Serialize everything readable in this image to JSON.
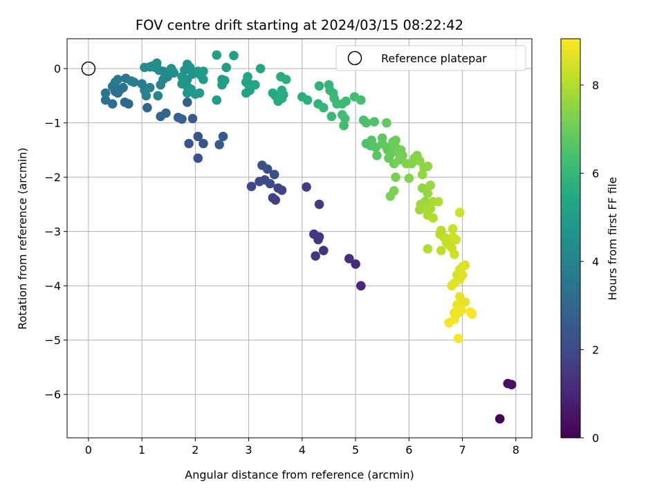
{
  "chart_data": {
    "type": "scatter",
    "title": "FOV centre drift starting at 2024/03/15 08:22:42",
    "xlabel": "Angular distance from reference (arcmin)",
    "ylabel": "Rotation from reference (arcmin)",
    "xlim": [
      -0.4,
      8.3
    ],
    "ylim": [
      -6.8,
      0.55
    ],
    "xticks": [
      "0",
      "1",
      "2",
      "3",
      "4",
      "5",
      "6",
      "7",
      "8"
    ],
    "yticks": [
      "0",
      "−1",
      "−2",
      "−3",
      "−4",
      "−5",
      "−6"
    ],
    "grid": true,
    "colormap": "viridis",
    "colorbar": {
      "label": "Hours from first FF file",
      "range": [
        0,
        9.05
      ],
      "ticks": [
        "0",
        "2",
        "4",
        "6",
        "8"
      ]
    },
    "legend": {
      "placement": "top-right",
      "entries": [
        {
          "label": "Reference platepar",
          "marker": "open-circle",
          "color": "#000000"
        }
      ]
    },
    "reference_point": {
      "x": 0,
      "y": 0
    },
    "points": [
      [
        7.7,
        -6.45,
        0.1
      ],
      [
        7.85,
        -5.8,
        0.3
      ],
      [
        7.92,
        -5.82,
        0.4
      ],
      [
        5.1,
        -4.0,
        1.0
      ],
      [
        5.0,
        -3.6,
        1.1
      ],
      [
        4.88,
        -3.5,
        1.2
      ],
      [
        4.4,
        -3.35,
        1.3
      ],
      [
        4.25,
        -3.45,
        1.35
      ],
      [
        4.3,
        -3.15,
        1.4
      ],
      [
        4.32,
        -3.1,
        1.45
      ],
      [
        4.22,
        -3.05,
        1.5
      ],
      [
        4.32,
        -2.5,
        1.55
      ],
      [
        4.08,
        -2.18,
        1.6
      ],
      [
        3.5,
        -2.42,
        1.7
      ],
      [
        3.45,
        -2.38,
        1.75
      ],
      [
        3.62,
        -2.24,
        1.8
      ],
      [
        3.55,
        -2.2,
        1.85
      ],
      [
        3.05,
        -2.17,
        1.9
      ],
      [
        3.2,
        -2.08,
        1.95
      ],
      [
        3.3,
        -2.05,
        2.0
      ],
      [
        3.4,
        -2.12,
        2.05
      ],
      [
        3.48,
        -1.95,
        2.1
      ],
      [
        3.35,
        -1.85,
        2.15
      ],
      [
        3.25,
        -1.78,
        2.2
      ],
      [
        2.05,
        -1.65,
        2.3
      ],
      [
        2.15,
        -1.38,
        2.35
      ],
      [
        2.05,
        -1.25,
        2.4
      ],
      [
        1.88,
        -1.38,
        2.45
      ],
      [
        2.45,
        -1.4,
        2.5
      ],
      [
        2.52,
        -1.25,
        2.55
      ],
      [
        1.95,
        -0.92,
        2.6
      ],
      [
        1.75,
        -0.93,
        2.7
      ],
      [
        1.68,
        -0.9,
        2.75
      ],
      [
        1.85,
        -0.62,
        2.8
      ],
      [
        1.45,
        -0.82,
        2.9
      ],
      [
        1.35,
        -0.88,
        2.95
      ],
      [
        1.1,
        -0.72,
        3.0
      ],
      [
        0.75,
        -0.65,
        3.1
      ],
      [
        0.68,
        -0.62,
        3.15
      ],
      [
        0.45,
        -0.65,
        3.2
      ],
      [
        0.32,
        -0.58,
        3.25
      ],
      [
        0.55,
        -0.45,
        3.3
      ],
      [
        0.5,
        -0.42,
        3.35
      ],
      [
        0.6,
        -0.38,
        3.4
      ],
      [
        0.65,
        -0.35,
        3.45
      ],
      [
        0.32,
        -0.45,
        3.5
      ],
      [
        0.45,
        -0.33,
        3.55
      ],
      [
        0.5,
        -0.25,
        3.6
      ],
      [
        0.55,
        -0.2,
        3.65
      ],
      [
        0.7,
        -0.18,
        3.7
      ],
      [
        0.8,
        -0.23,
        3.75
      ],
      [
        0.85,
        -0.25,
        3.8
      ],
      [
        1.0,
        -0.28,
        3.85
      ],
      [
        1.05,
        -0.4,
        3.9
      ],
      [
        1.08,
        -0.5,
        3.95
      ],
      [
        1.15,
        -0.35,
        4.0
      ],
      [
        1.3,
        -0.5,
        4.05
      ],
      [
        1.35,
        -0.3,
        4.1
      ],
      [
        1.4,
        -0.2,
        4.15
      ],
      [
        1.48,
        -0.15,
        4.2
      ],
      [
        1.5,
        -0.08,
        4.25
      ],
      [
        1.4,
        -0.05,
        4.3
      ],
      [
        1.32,
        -0.03,
        4.3
      ],
      [
        1.25,
        0.02,
        4.35
      ],
      [
        1.15,
        0.03,
        4.35
      ],
      [
        1.05,
        0.02,
        4.4
      ],
      [
        1.28,
        0.1,
        4.4
      ],
      [
        1.2,
        0.05,
        4.45
      ],
      [
        1.55,
        0.0,
        4.45
      ],
      [
        1.6,
        -0.08,
        4.5
      ],
      [
        1.8,
        -0.03,
        4.55
      ],
      [
        1.9,
        0.02,
        4.55
      ],
      [
        1.85,
        0.08,
        4.6
      ],
      [
        1.95,
        -0.1,
        4.6
      ],
      [
        1.75,
        -0.15,
        4.65
      ],
      [
        1.85,
        -0.2,
        4.65
      ],
      [
        1.75,
        -0.28,
        4.7
      ],
      [
        1.85,
        -0.33,
        4.7
      ],
      [
        1.92,
        -0.38,
        4.75
      ],
      [
        1.85,
        -0.45,
        4.75
      ],
      [
        2.08,
        -0.45,
        4.8
      ],
      [
        2.0,
        -0.47,
        4.8
      ],
      [
        2.05,
        -0.05,
        4.85
      ],
      [
        2.1,
        -0.12,
        4.85
      ],
      [
        2.15,
        -0.05,
        4.9
      ],
      [
        2.15,
        -0.2,
        4.9
      ],
      [
        2.4,
        -0.58,
        4.95
      ],
      [
        2.5,
        -0.2,
        5.0
      ],
      [
        2.55,
        -0.22,
        5.0
      ],
      [
        2.5,
        -0.3,
        5.05
      ],
      [
        2.58,
        0.02,
        5.05
      ],
      [
        2.4,
        0.25,
        5.1
      ],
      [
        2.72,
        0.24,
        5.1
      ],
      [
        2.95,
        -0.45,
        5.2
      ],
      [
        3.02,
        -0.4,
        5.2
      ],
      [
        3.0,
        -0.3,
        5.25
      ],
      [
        2.95,
        -0.25,
        5.25
      ],
      [
        3.05,
        -0.3,
        5.3
      ],
      [
        2.98,
        -0.15,
        5.3
      ],
      [
        3.12,
        -0.3,
        5.35
      ],
      [
        3.22,
        0.0,
        5.35
      ],
      [
        3.45,
        -0.45,
        5.45
      ],
      [
        3.5,
        -0.5,
        5.45
      ],
      [
        3.55,
        -0.52,
        5.5
      ],
      [
        3.55,
        -0.6,
        5.5
      ],
      [
        3.62,
        -0.55,
        5.55
      ],
      [
        3.62,
        -0.4,
        5.55
      ],
      [
        3.65,
        -0.48,
        5.6
      ],
      [
        3.6,
        -0.15,
        5.6
      ],
      [
        3.7,
        -0.2,
        5.65
      ],
      [
        4.0,
        -0.52,
        5.7
      ],
      [
        4.1,
        -0.58,
        5.75
      ],
      [
        4.32,
        -0.32,
        5.8
      ],
      [
        4.3,
        -0.65,
        5.85
      ],
      [
        4.4,
        -0.72,
        5.9
      ],
      [
        4.5,
        -0.3,
        5.95
      ],
      [
        4.52,
        -0.4,
        6.0
      ],
      [
        4.58,
        -0.45,
        6.0
      ],
      [
        4.55,
        -0.88,
        6.05
      ],
      [
        4.6,
        -0.55,
        6.1
      ],
      [
        4.65,
        -0.65,
        6.1
      ],
      [
        4.75,
        -0.65,
        6.15
      ],
      [
        4.82,
        -0.6,
        6.15
      ],
      [
        4.75,
        -0.85,
        6.2
      ],
      [
        4.8,
        -0.92,
        6.25
      ],
      [
        4.78,
        -1.05,
        6.25
      ],
      [
        4.98,
        -0.52,
        6.3
      ],
      [
        5.1,
        -0.58,
        6.35
      ],
      [
        5.15,
        -0.95,
        6.4
      ],
      [
        5.2,
        -1.0,
        6.45
      ],
      [
        5.35,
        -0.98,
        6.5
      ],
      [
        5.2,
        -1.38,
        6.5
      ],
      [
        5.28,
        -1.42,
        6.55
      ],
      [
        5.3,
        -1.32,
        6.6
      ],
      [
        5.38,
        -1.45,
        6.65
      ],
      [
        5.4,
        -1.6,
        6.7
      ],
      [
        5.5,
        -1.38,
        6.75
      ],
      [
        5.5,
        -1.28,
        6.8
      ],
      [
        5.58,
        -1.45,
        6.8
      ],
      [
        5.58,
        -1.0,
        6.85
      ],
      [
        5.6,
        -1.5,
        6.85
      ],
      [
        5.62,
        -1.65,
        6.9
      ],
      [
        5.65,
        -1.58,
        6.9
      ],
      [
        5.7,
        -1.35,
        6.95
      ],
      [
        5.75,
        -1.32,
        7.0
      ],
      [
        5.75,
        -1.45,
        7.0
      ],
      [
        5.8,
        -1.55,
        7.05
      ],
      [
        5.85,
        -1.5,
        7.05
      ],
      [
        5.72,
        -1.75,
        7.1
      ],
      [
        5.82,
        -1.68,
        7.15
      ],
      [
        5.88,
        -1.6,
        7.15
      ],
      [
        5.75,
        -2.0,
        7.2
      ],
      [
        5.72,
        -2.25,
        7.25
      ],
      [
        5.65,
        -2.35,
        7.25
      ],
      [
        5.95,
        -1.75,
        7.3
      ],
      [
        6.0,
        -2.02,
        7.35
      ],
      [
        6.05,
        -1.75,
        7.35
      ],
      [
        6.1,
        -1.65,
        7.4
      ],
      [
        6.15,
        -1.6,
        7.4
      ],
      [
        6.2,
        -1.7,
        7.45
      ],
      [
        6.28,
        -1.82,
        7.5
      ],
      [
        6.35,
        -1.8,
        7.5
      ],
      [
        6.25,
        -1.95,
        7.55
      ],
      [
        6.25,
        -2.2,
        7.55
      ],
      [
        6.3,
        -2.45,
        7.6
      ],
      [
        6.35,
        -2.3,
        7.6
      ],
      [
        6.4,
        -2.15,
        7.65
      ],
      [
        6.2,
        -2.6,
        7.7
      ],
      [
        6.22,
        -2.5,
        7.75
      ],
      [
        6.3,
        -2.55,
        7.75
      ],
      [
        6.35,
        -2.6,
        7.8
      ],
      [
        6.4,
        -2.58,
        7.85
      ],
      [
        6.45,
        -2.45,
        7.85
      ],
      [
        6.35,
        -2.7,
        7.9
      ],
      [
        6.45,
        -2.75,
        7.95
      ],
      [
        6.55,
        -2.45,
        7.95
      ],
      [
        6.35,
        -3.32,
        8.0
      ],
      [
        6.58,
        -3.05,
        8.05
      ],
      [
        6.6,
        -2.98,
        8.1
      ],
      [
        6.65,
        -3.1,
        8.1
      ],
      [
        6.6,
        -3.35,
        8.15
      ],
      [
        6.7,
        -3.2,
        8.2
      ],
      [
        6.68,
        -3.12,
        8.2
      ],
      [
        6.75,
        -3.25,
        8.25
      ],
      [
        6.8,
        -3.3,
        8.3
      ],
      [
        6.82,
        -2.95,
        8.3
      ],
      [
        6.85,
        -3.42,
        8.35
      ],
      [
        6.88,
        -3.15,
        8.35
      ],
      [
        6.82,
        -3.1,
        8.4
      ],
      [
        6.95,
        -2.65,
        8.4
      ],
      [
        6.9,
        -3.8,
        8.45
      ],
      [
        6.95,
        -3.7,
        8.5
      ],
      [
        7.0,
        -3.65,
        8.5
      ],
      [
        7.05,
        -3.62,
        8.55
      ],
      [
        7.0,
        -3.8,
        8.55
      ],
      [
        6.95,
        -3.88,
        8.6
      ],
      [
        6.85,
        -3.95,
        8.6
      ],
      [
        6.8,
        -4.0,
        8.65
      ],
      [
        6.95,
        -4.2,
        8.7
      ],
      [
        7.02,
        -4.3,
        8.75
      ],
      [
        7.05,
        -4.3,
        8.75
      ],
      [
        6.9,
        -4.35,
        8.8
      ],
      [
        6.92,
        -4.5,
        8.8
      ],
      [
        6.98,
        -4.45,
        8.85
      ],
      [
        6.85,
        -4.5,
        8.85
      ],
      [
        6.85,
        -4.62,
        8.9
      ],
      [
        6.75,
        -4.68,
        8.9
      ],
      [
        7.15,
        -4.48,
        8.95
      ],
      [
        7.18,
        -4.52,
        8.95
      ],
      [
        6.92,
        -4.97,
        9.0
      ]
    ]
  }
}
